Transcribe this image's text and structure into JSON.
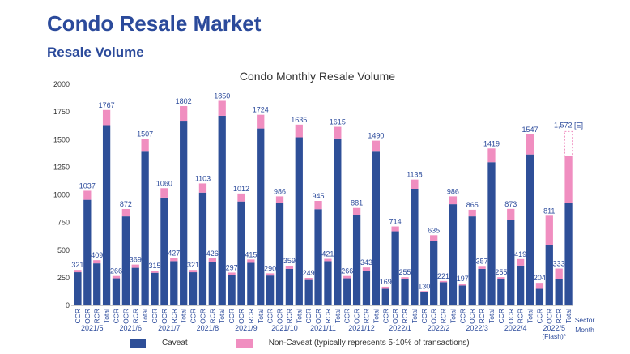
{
  "header": {
    "title": "Condo Resale Market",
    "subtitle": "Resale Volume"
  },
  "legend": {
    "caveat": "Caveat",
    "non_caveat": "Non-Caveat (typically represents 5-10% of transactions)",
    "caveat_color": "#2e4f98",
    "non_caveat_color": "#f08ec0"
  },
  "chart_data": {
    "type": "bar",
    "stacked": true,
    "title": "Condo Monthly Resale Volume",
    "ylim": [
      0,
      2000
    ],
    "yticks": [
      0,
      250,
      500,
      750,
      1000,
      1250,
      1500,
      1750,
      2000
    ],
    "sector_label": [
      "Sector",
      "Month"
    ],
    "months": [
      {
        "label": "2021/5",
        "bars": [
          {
            "cat": "CCR",
            "caveat": 300,
            "non_caveat": 21,
            "label": "321"
          },
          {
            "cat": "OCR",
            "caveat": 955,
            "non_caveat": 82,
            "label": "1037"
          },
          {
            "cat": "RCR",
            "caveat": 380,
            "non_caveat": 29,
            "label": "409"
          },
          {
            "cat": "Total",
            "caveat": 1630,
            "non_caveat": 137,
            "label": "1767"
          }
        ]
      },
      {
        "label": "2021/6",
        "bars": [
          {
            "cat": "CCR",
            "caveat": 245,
            "non_caveat": 21,
            "label": "266"
          },
          {
            "cat": "OCR",
            "caveat": 805,
            "non_caveat": 67,
            "label": "872"
          },
          {
            "cat": "RCR",
            "caveat": 340,
            "non_caveat": 29,
            "label": "369"
          },
          {
            "cat": "Total",
            "caveat": 1390,
            "non_caveat": 117,
            "label": "1507"
          }
        ]
      },
      {
        "label": "2021/7",
        "bars": [
          {
            "cat": "CCR",
            "caveat": 295,
            "non_caveat": 20,
            "label": "315"
          },
          {
            "cat": "OCR",
            "caveat": 975,
            "non_caveat": 85,
            "label": "1060"
          },
          {
            "cat": "RCR",
            "caveat": 400,
            "non_caveat": 27,
            "label": "427"
          },
          {
            "cat": "Total",
            "caveat": 1670,
            "non_caveat": 132,
            "label": "1802"
          }
        ]
      },
      {
        "label": "2021/8",
        "bars": [
          {
            "cat": "CCR",
            "caveat": 300,
            "non_caveat": 21,
            "label": "321"
          },
          {
            "cat": "OCR",
            "caveat": 1020,
            "non_caveat": 83,
            "label": "1103"
          },
          {
            "cat": "RCR",
            "caveat": 395,
            "non_caveat": 31,
            "label": "426"
          },
          {
            "cat": "Total",
            "caveat": 1715,
            "non_caveat": 135,
            "label": "1850"
          }
        ]
      },
      {
        "label": "2021/9",
        "bars": [
          {
            "cat": "CCR",
            "caveat": 275,
            "non_caveat": 22,
            "label": "297"
          },
          {
            "cat": "OCR",
            "caveat": 940,
            "non_caveat": 72,
            "label": "1012"
          },
          {
            "cat": "RCR",
            "caveat": 385,
            "non_caveat": 30,
            "label": "415"
          },
          {
            "cat": "Total",
            "caveat": 1600,
            "non_caveat": 124,
            "label": "1724"
          }
        ]
      },
      {
        "label": "2021/10",
        "bars": [
          {
            "cat": "CCR",
            "caveat": 270,
            "non_caveat": 20,
            "label": "290"
          },
          {
            "cat": "OCR",
            "caveat": 925,
            "non_caveat": 61,
            "label": "986"
          },
          {
            "cat": "RCR",
            "caveat": 330,
            "non_caveat": 29,
            "label": "359"
          },
          {
            "cat": "Total",
            "caveat": 1520,
            "non_caveat": 115,
            "label": "1635"
          }
        ]
      },
      {
        "label": "2021/11",
        "bars": [
          {
            "cat": "CCR",
            "caveat": 230,
            "non_caveat": 19,
            "label": "249"
          },
          {
            "cat": "OCR",
            "caveat": 870,
            "non_caveat": 75,
            "label": "945"
          },
          {
            "cat": "RCR",
            "caveat": 400,
            "non_caveat": 21,
            "label": "421"
          },
          {
            "cat": "Total",
            "caveat": 1510,
            "non_caveat": 105,
            "label": "1615"
          }
        ]
      },
      {
        "label": "2021/12",
        "bars": [
          {
            "cat": "CCR",
            "caveat": 245,
            "non_caveat": 21,
            "label": "266"
          },
          {
            "cat": "OCR",
            "caveat": 820,
            "non_caveat": 61,
            "label": "881"
          },
          {
            "cat": "RCR",
            "caveat": 315,
            "non_caveat": 28,
            "label": "343"
          },
          {
            "cat": "Total",
            "caveat": 1390,
            "non_caveat": 100,
            "label": "1490"
          }
        ]
      },
      {
        "label": "2022/1",
        "bars": [
          {
            "cat": "CCR",
            "caveat": 150,
            "non_caveat": 19,
            "label": "169"
          },
          {
            "cat": "OCR",
            "caveat": 670,
            "non_caveat": 44,
            "label": "714"
          },
          {
            "cat": "RCR",
            "caveat": 235,
            "non_caveat": 20,
            "label": "255"
          },
          {
            "cat": "Total",
            "caveat": 1055,
            "non_caveat": 83,
            "label": "1138"
          }
        ]
      },
      {
        "label": "2022/2",
        "bars": [
          {
            "cat": "CCR",
            "caveat": 120,
            "non_caveat": 10,
            "label": "130"
          },
          {
            "cat": "OCR",
            "caveat": 585,
            "non_caveat": 50,
            "label": "635"
          },
          {
            "cat": "RCR",
            "caveat": 210,
            "non_caveat": 11,
            "label": "221"
          },
          {
            "cat": "Total",
            "caveat": 915,
            "non_caveat": 71,
            "label": "986"
          }
        ]
      },
      {
        "label": "2022/3",
        "bars": [
          {
            "cat": "CCR",
            "caveat": 180,
            "non_caveat": 17,
            "label": "197"
          },
          {
            "cat": "OCR",
            "caveat": 805,
            "non_caveat": 60,
            "label": "865"
          },
          {
            "cat": "RCR",
            "caveat": 330,
            "non_caveat": 27,
            "label": "357"
          },
          {
            "cat": "Total",
            "caveat": 1295,
            "non_caveat": 124,
            "label": "1419"
          }
        ]
      },
      {
        "label": "2022/4",
        "bars": [
          {
            "cat": "CCR",
            "caveat": 235,
            "non_caveat": 20,
            "label": "255"
          },
          {
            "cat": "OCR",
            "caveat": 770,
            "non_caveat": 103,
            "label": "873"
          },
          {
            "cat": "RCR",
            "caveat": 360,
            "non_caveat": 59,
            "label": "419"
          },
          {
            "cat": "Total",
            "caveat": 1365,
            "non_caveat": 182,
            "label": "1547"
          }
        ]
      },
      {
        "label": "2022/5",
        "sublabel": "(Flash)*",
        "bars": [
          {
            "cat": "CCR",
            "caveat": 150,
            "non_caveat": 54,
            "label": "204"
          },
          {
            "cat": "OCR",
            "caveat": 545,
            "non_caveat": 266,
            "label": "811"
          },
          {
            "cat": "RCR",
            "caveat": 240,
            "non_caveat": 93,
            "label": "333"
          },
          {
            "cat": "Total",
            "caveat": 925,
            "non_caveat": 425,
            "label": "",
            "projected": 1572,
            "projected_label": "1,572 [E]"
          }
        ]
      }
    ]
  }
}
